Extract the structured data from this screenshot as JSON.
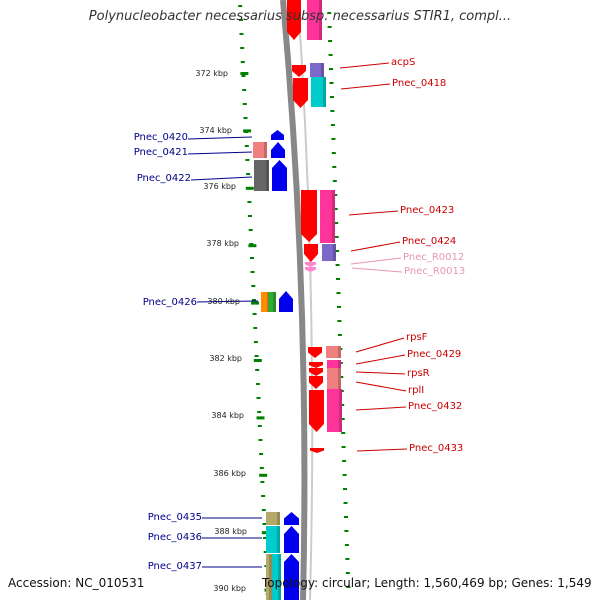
{
  "title": "Polynucleobacter necessarius subsp. necessarius STIR1, compl...",
  "footer": {
    "accession": "Accession: NC_010531",
    "summary": "Topology: circular; Length: 1,560,469 bp; Genes: 1,549"
  },
  "axis_ticks": [
    {
      "label": "372 kbp",
      "kbp": 372
    },
    {
      "label": "374 kbp",
      "kbp": 374
    },
    {
      "label": "376 kbp",
      "kbp": 376
    },
    {
      "label": "378 kbp",
      "kbp": 378
    },
    {
      "label": "380 kbp",
      "kbp": 380
    },
    {
      "label": "382 kbp",
      "kbp": 382
    },
    {
      "label": "384 kbp",
      "kbp": 384
    },
    {
      "label": "386 kbp",
      "kbp": 386
    },
    {
      "label": "388 kbp",
      "kbp": 388
    },
    {
      "label": "390 kbp",
      "kbp": 390
    }
  ],
  "colors": {
    "red": "#ff0000",
    "pink": "#ff3399",
    "salmon": "#f08080",
    "cyan": "#00cccc",
    "purple": "#7b68c8",
    "blue": "#0000ee",
    "gray": "#666666",
    "olive": "#b5a96a",
    "orange": "#ff8c00",
    "green": "#33aa33",
    "rna_pink": "#ff88cc",
    "backbone": "#888888",
    "dots": "#008000",
    "left_label": "#00008b",
    "right_label": "#cc0000",
    "rna_label": "#e895b8"
  },
  "left_genes": [
    {
      "name": "Pnec_0420"
    },
    {
      "name": "Pnec_0421"
    },
    {
      "name": "Pnec_0422"
    },
    {
      "name": "Pnec_0426"
    },
    {
      "name": "Pnec_0435"
    },
    {
      "name": "Pnec_0436"
    },
    {
      "name": "Pnec_0437"
    }
  ],
  "right_genes": [
    {
      "name": "acpS"
    },
    {
      "name": "Pnec_0418"
    },
    {
      "name": "Pnec_0423"
    },
    {
      "name": "Pnec_0424"
    },
    {
      "name": "Pnec_R0012"
    },
    {
      "name": "Pnec_R0013"
    },
    {
      "name": "rpsF"
    },
    {
      "name": "Pnec_0429"
    },
    {
      "name": "rpsR"
    },
    {
      "name": "rplI"
    },
    {
      "name": "Pnec_0432"
    },
    {
      "name": "Pnec_0433"
    }
  ]
}
